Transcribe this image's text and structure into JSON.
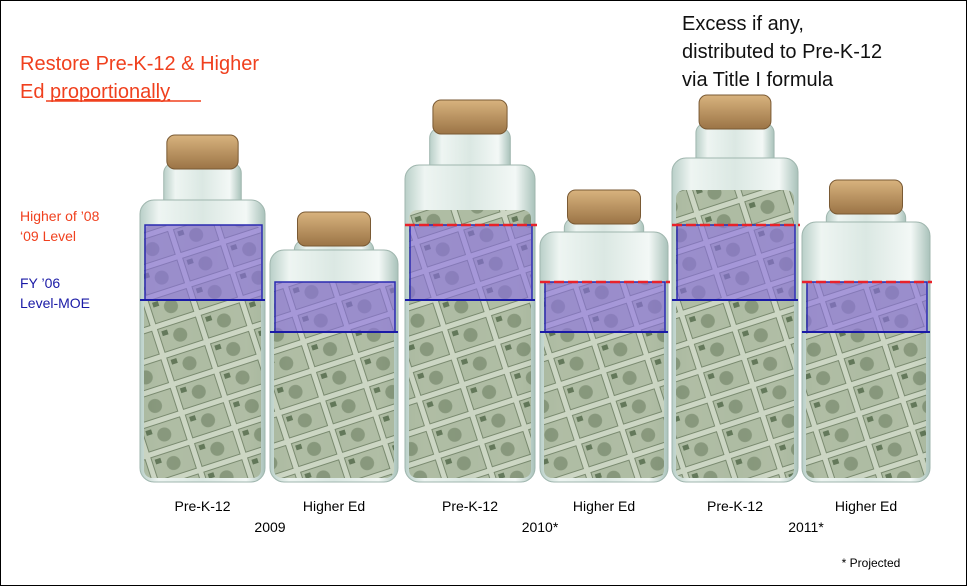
{
  "title": {
    "line1": "Restore Pre-K-12 & Higher",
    "line2_prefix": "Ed",
    "line2_underlined": "proportionally"
  },
  "excess_note": [
    "Excess if any,",
    "distributed to Pre-K-12",
    "via Title I formula"
  ],
  "legend": {
    "higher_level": [
      "Higher of ’08",
      "‘09 Level"
    ],
    "moe_level": [
      "FY ’06",
      "Level-MOE"
    ]
  },
  "jars": [
    {
      "label": "Pre-K-12"
    },
    {
      "label": "Higher Ed"
    },
    {
      "label": "Pre-K-12"
    },
    {
      "label": "Higher Ed"
    },
    {
      "label": "Pre-K-12"
    },
    {
      "label": "Higher Ed"
    }
  ],
  "years": [
    "2009",
    "2010*",
    "2011*"
  ],
  "footnote": "* Projected"
}
